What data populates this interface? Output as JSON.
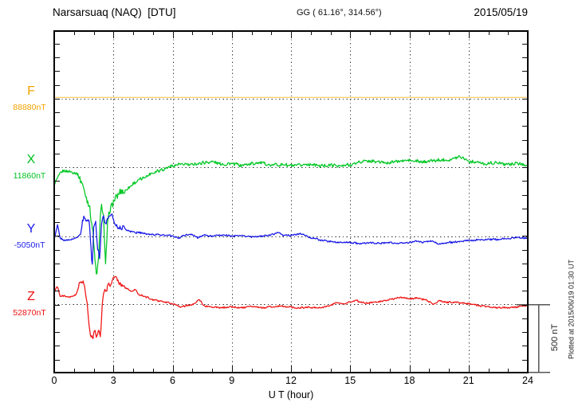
{
  "header": {
    "station_title": "Narsarsuaq (NAQ)  [DTU]",
    "coords": "GG ( 61.16°, 314.56°)",
    "date": "2015/05/19"
  },
  "note": {
    "plotted_at": "Plotted at 2015/06/19 01:30 UT"
  },
  "scale_bar": {
    "label": "500 nT",
    "span_nT": 500
  },
  "x_axis": {
    "label": "U T (hour)",
    "tick_labels": [
      "0",
      "3",
      "6",
      "9",
      "12",
      "15",
      "18",
      "21",
      "24"
    ],
    "minor_step_hours": 1,
    "major_step_hours": 3
  },
  "chart_data": {
    "type": "line",
    "title": "Narsarsuaq (NAQ) [DTU] magnetogram for 2015/05/19",
    "xlabel": "U T (hour)",
    "x_range_hours": [
      0,
      24
    ],
    "x_major_ticks": [
      0,
      3,
      6,
      9,
      12,
      15,
      18,
      21,
      24
    ],
    "y_minor_tick_nT": 100,
    "baseline_separation_nT": 500,
    "scale_bar_nT": 500,
    "grid": "dotted vertical lines every 3 h; dotted horizontal line at each component baseline",
    "units_note": "offsets_nT are [hour, deviation in nT] from each component baseline value",
    "series": [
      {
        "name": "F",
        "label_color": "#F2A200",
        "line_color": "#F6CE69",
        "baseline_label": "88880nT",
        "baseline_nT": 88880,
        "noise_nT": 0,
        "offsets_nT": [
          [
            0,
            12
          ],
          [
            24,
            12
          ]
        ]
      },
      {
        "name": "X",
        "label_color": "#00C020",
        "line_color": "#00C724",
        "baseline_label": "11860nT",
        "baseline_nT": 11860,
        "noise_nT": 15,
        "offsets_nT": [
          [
            0,
            -116
          ],
          [
            0.3,
            -47
          ],
          [
            0.5,
            -23
          ],
          [
            0.8,
            -23
          ],
          [
            1.0,
            -35
          ],
          [
            1.2,
            -52
          ],
          [
            1.4,
            -105
          ],
          [
            1.6,
            -203
          ],
          [
            1.8,
            -302
          ],
          [
            1.95,
            -465
          ],
          [
            2.05,
            -640
          ],
          [
            2.15,
            -800
          ],
          [
            2.25,
            -640
          ],
          [
            2.35,
            -320
          ],
          [
            2.42,
            -290
          ],
          [
            2.5,
            -360
          ],
          [
            2.6,
            -727
          ],
          [
            2.7,
            -430
          ],
          [
            2.8,
            -310
          ],
          [
            2.95,
            -270
          ],
          [
            3.1,
            -233
          ],
          [
            3.3,
            -192
          ],
          [
            3.6,
            -163
          ],
          [
            4.0,
            -116
          ],
          [
            4.5,
            -76
          ],
          [
            5.0,
            -35
          ],
          [
            5.5,
            -12
          ],
          [
            6.0,
            17
          ],
          [
            6.5,
            23
          ],
          [
            7.0,
            23
          ],
          [
            7.5,
            35
          ],
          [
            8.0,
            41
          ],
          [
            8.5,
            23
          ],
          [
            9.0,
            29
          ],
          [
            9.5,
            17
          ],
          [
            10,
            29
          ],
          [
            10.5,
            35
          ],
          [
            11,
            17
          ],
          [
            11.5,
            23
          ],
          [
            12,
            12
          ],
          [
            12.5,
            17
          ],
          [
            13,
            23
          ],
          [
            13.5,
            12
          ],
          [
            14,
            17
          ],
          [
            14.5,
            12
          ],
          [
            15,
            23
          ],
          [
            15.5,
            41
          ],
          [
            16,
            47
          ],
          [
            16.5,
            41
          ],
          [
            17,
            35
          ],
          [
            17.5,
            47
          ],
          [
            18,
            52
          ],
          [
            18.5,
            41
          ],
          [
            19,
            47
          ],
          [
            19.5,
            52
          ],
          [
            20,
            58
          ],
          [
            20.6,
            81
          ],
          [
            21,
            47
          ],
          [
            21.5,
            35
          ],
          [
            22,
            29
          ],
          [
            22.5,
            35
          ],
          [
            23,
            23
          ],
          [
            23.5,
            29
          ],
          [
            24,
            17
          ]
        ]
      },
      {
        "name": "Y",
        "label_color": "#1A1AEF",
        "line_color": "#1616E8",
        "baseline_label": "-5050nT",
        "baseline_nT": -5050,
        "noise_nT": 8,
        "offsets_nT": [
          [
            0,
            -17
          ],
          [
            0.17,
            87
          ],
          [
            0.3,
            -12
          ],
          [
            0.5,
            -23
          ],
          [
            0.8,
            -23
          ],
          [
            1.0,
            -12
          ],
          [
            1.2,
            0
          ],
          [
            1.35,
            29
          ],
          [
            1.45,
            128
          ],
          [
            1.55,
            145
          ],
          [
            1.65,
            105
          ],
          [
            1.75,
            140
          ],
          [
            1.85,
            -29
          ],
          [
            1.92,
            -233
          ],
          [
            2.0,
            58
          ],
          [
            2.1,
            116
          ],
          [
            2.2,
            -87
          ],
          [
            2.3,
            -145
          ],
          [
            2.4,
            105
          ],
          [
            2.5,
            163
          ],
          [
            2.6,
            87
          ],
          [
            2.7,
            128
          ],
          [
            2.8,
            163
          ],
          [
            2.95,
            145
          ],
          [
            3.1,
            87
          ],
          [
            3.3,
            58
          ],
          [
            3.5,
            70
          ],
          [
            3.7,
            47
          ],
          [
            4.0,
            35
          ],
          [
            4.3,
            29
          ],
          [
            4.6,
            23
          ],
          [
            5.0,
            17
          ],
          [
            5.5,
            12
          ],
          [
            6.0,
            6
          ],
          [
            6.3,
            -12
          ],
          [
            6.6,
            12
          ],
          [
            7.0,
            17
          ],
          [
            7.3,
            -6
          ],
          [
            7.6,
            12
          ],
          [
            8.0,
            6
          ],
          [
            8.5,
            12
          ],
          [
            9.0,
            6
          ],
          [
            9.5,
            12
          ],
          [
            10,
            0
          ],
          [
            10.5,
            6
          ],
          [
            11,
            12
          ],
          [
            11.3,
            35
          ],
          [
            11.6,
            12
          ],
          [
            12,
            12
          ],
          [
            12.5,
            23
          ],
          [
            13,
            -6
          ],
          [
            13.5,
            -23
          ],
          [
            14,
            -35
          ],
          [
            14.5,
            -41
          ],
          [
            15,
            -41
          ],
          [
            15.5,
            -47
          ],
          [
            16,
            -41
          ],
          [
            16.5,
            -47
          ],
          [
            17,
            -41
          ],
          [
            17.5,
            -47
          ],
          [
            18,
            -41
          ],
          [
            18.3,
            -29
          ],
          [
            18.7,
            -41
          ],
          [
            19.1,
            -29
          ],
          [
            19.4,
            -47
          ],
          [
            19.7,
            -52
          ],
          [
            20,
            -41
          ],
          [
            20.5,
            -35
          ],
          [
            21,
            -29
          ],
          [
            21.5,
            -23
          ],
          [
            22,
            -17
          ],
          [
            22.5,
            -17
          ],
          [
            23,
            -12
          ],
          [
            23.5,
            -6
          ],
          [
            24,
            -6
          ]
        ]
      },
      {
        "name": "Z",
        "label_color": "#EE1010",
        "line_color": "#EF1212",
        "baseline_label": "52870nT",
        "baseline_nT": 52870,
        "noise_nT": 8,
        "offsets_nT": [
          [
            0,
            87
          ],
          [
            0.15,
            140
          ],
          [
            0.3,
            58
          ],
          [
            0.5,
            64
          ],
          [
            0.7,
            52
          ],
          [
            0.9,
            58
          ],
          [
            1.1,
            70
          ],
          [
            1.3,
            157
          ],
          [
            1.45,
            174
          ],
          [
            1.55,
            116
          ],
          [
            1.65,
            29
          ],
          [
            1.75,
            -134
          ],
          [
            1.85,
            -233
          ],
          [
            1.95,
            -250
          ],
          [
            2.05,
            -192
          ],
          [
            2.15,
            -244
          ],
          [
            2.25,
            -174
          ],
          [
            2.35,
            -233
          ],
          [
            2.45,
            41
          ],
          [
            2.55,
            116
          ],
          [
            2.62,
            81
          ],
          [
            2.75,
            157
          ],
          [
            2.85,
            140
          ],
          [
            3.0,
            203
          ],
          [
            3.15,
            186
          ],
          [
            3.3,
            157
          ],
          [
            3.5,
            128
          ],
          [
            3.7,
            116
          ],
          [
            3.9,
            93
          ],
          [
            4.1,
            110
          ],
          [
            4.3,
            70
          ],
          [
            4.6,
            58
          ],
          [
            5.0,
            35
          ],
          [
            5.4,
            23
          ],
          [
            5.8,
            12
          ],
          [
            6.1,
            0
          ],
          [
            6.4,
            -17
          ],
          [
            6.8,
            -6
          ],
          [
            7.1,
            6
          ],
          [
            7.35,
            35
          ],
          [
            7.6,
            -12
          ],
          [
            8.0,
            -17
          ],
          [
            8.5,
            -23
          ],
          [
            9.0,
            -17
          ],
          [
            9.5,
            -23
          ],
          [
            10,
            -17
          ],
          [
            10.5,
            -23
          ],
          [
            11,
            -17
          ],
          [
            11.5,
            -12
          ],
          [
            12,
            -17
          ],
          [
            12.3,
            -29
          ],
          [
            12.8,
            -17
          ],
          [
            13.3,
            -23
          ],
          [
            13.8,
            -17
          ],
          [
            14.3,
            17
          ],
          [
            14.6,
            6
          ],
          [
            15.0,
            17
          ],
          [
            15.3,
            29
          ],
          [
            15.7,
            12
          ],
          [
            16,
            12
          ],
          [
            16.5,
            23
          ],
          [
            17,
            35
          ],
          [
            17.4,
            47
          ],
          [
            17.7,
            52
          ],
          [
            18,
            41
          ],
          [
            18.3,
            47
          ],
          [
            18.6,
            41
          ],
          [
            18.9,
            29
          ],
          [
            19.2,
            0
          ],
          [
            19.5,
            29
          ],
          [
            19.8,
            17
          ],
          [
            20.2,
            17
          ],
          [
            20.6,
            12
          ],
          [
            21,
            6
          ],
          [
            21.5,
            -6
          ],
          [
            22,
            -17
          ],
          [
            22.5,
            -23
          ],
          [
            23,
            -23
          ],
          [
            23.4,
            -17
          ],
          [
            23.7,
            -12
          ],
          [
            24,
            -6
          ]
        ]
      }
    ]
  }
}
